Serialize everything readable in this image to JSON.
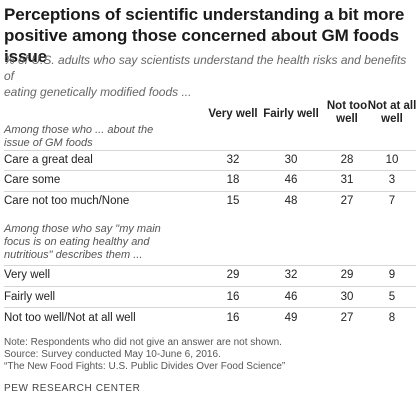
{
  "title_line1": "Perceptions of scientific understanding a bit more",
  "title_line2": "positive among those concerned about GM foods issue",
  "subtitle_line1": "% of U.S. adults who say scientists understand the health risks and benefits of",
  "subtitle_line2": "eating genetically modified foods ...",
  "columns": {
    "very_well": "Very well",
    "fairly_well": "Fairly well",
    "not_too_well_line1": "Not too",
    "not_too_well_line2": "well",
    "not_at_all_line1": "Not at all",
    "not_at_all_line2": "well"
  },
  "section1": {
    "label_line1": "Among those who ... about the",
    "label_line2": "issue of GM foods",
    "rows": [
      {
        "label": "Care a great deal",
        "values": [
          "32",
          "30",
          "28",
          "10"
        ]
      },
      {
        "label": "Care some",
        "values": [
          "18",
          "46",
          "31",
          "3"
        ]
      },
      {
        "label": "Care not too much/None",
        "values": [
          "15",
          "48",
          "27",
          "7"
        ]
      }
    ]
  },
  "section2": {
    "label_line1": "Among those who say \"my main",
    "label_line2": "focus is on eating healthy and",
    "label_line3": "nutritious\" describes them ...",
    "rows": [
      {
        "label": "Very well",
        "values": [
          "29",
          "32",
          "29",
          "9"
        ]
      },
      {
        "label": "Fairly well",
        "values": [
          "16",
          "46",
          "30",
          "5"
        ]
      },
      {
        "label": "Not too well/Not at all well",
        "values": [
          "16",
          "49",
          "27",
          "8"
        ]
      }
    ]
  },
  "notes": {
    "note": "Note: Respondents who did not give an answer are not shown.",
    "source": "Source: Survey conducted May 10-June 6, 2016.",
    "report": "“The New Food Fights: U.S. Public Divides Over Food Science”"
  },
  "footer": "PEW RESEARCH CENTER"
}
